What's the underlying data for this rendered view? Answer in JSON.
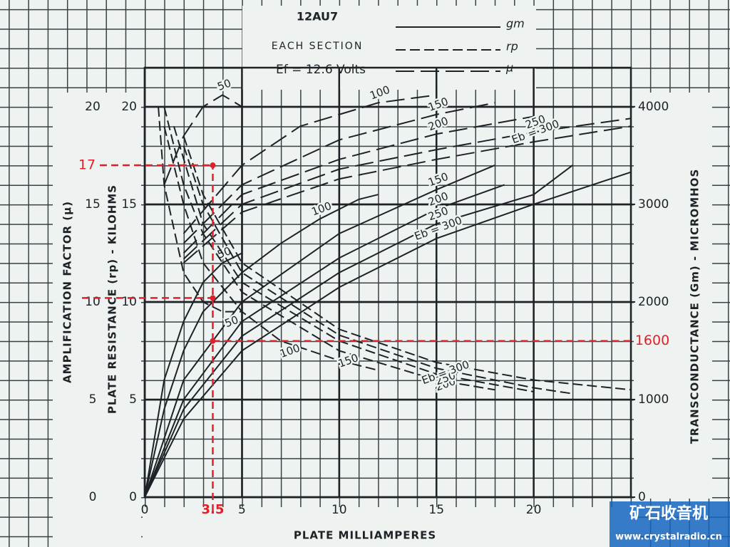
{
  "chart_data": {
    "type": "line",
    "title": "12AU7",
    "subtitle": "EACH SECTION",
    "note": "Ef = 12.6 Volts",
    "x_label": "PLATE MILLIAMPERES",
    "y_label_outer": "AMPLIFICATION FACTOR (μ)",
    "y_label": "PLATE RESISTANCE (rp) - KILOHMS",
    "y2_label": "TRANSCONDUCTANCE (Gm) - MICROMHOS",
    "xlim": [
      0,
      25
    ],
    "xticks": [
      0,
      5,
      10,
      15,
      20
    ],
    "ylim": [
      0,
      22
    ],
    "yticks": [
      0,
      5,
      10,
      15,
      20
    ],
    "y2lim": [
      0,
      4400
    ],
    "y2ticks": [
      0,
      1000,
      2000,
      3000,
      4000
    ],
    "grid": true,
    "legend": [
      {
        "name": "gm",
        "dash": "solid"
      },
      {
        "name": "rp",
        "dash": "dashed"
      },
      {
        "name": "μ",
        "dash": "long-dashed"
      }
    ],
    "series": [
      {
        "name": "50",
        "dash": "solid",
        "axis": "y2",
        "x": [
          0,
          1,
          2,
          3,
          4,
          5
        ],
        "values": [
          0,
          1200,
          1800,
          2200,
          2400,
          2500
        ]
      },
      {
        "name": "100",
        "dash": "solid",
        "axis": "y2",
        "x": [
          0,
          1,
          2,
          3,
          5,
          7,
          9,
          11,
          12
        ],
        "values": [
          0,
          900,
          1500,
          1900,
          2300,
          2600,
          2850,
          3050,
          3100
        ]
      },
      {
        "name": "150",
        "dash": "solid",
        "axis": "y2",
        "x": [
          0,
          2,
          5,
          10,
          15,
          18
        ],
        "values": [
          0,
          1200,
          2000,
          2700,
          3150,
          3400
        ]
      },
      {
        "name": "200",
        "dash": "solid",
        "axis": "y2",
        "x": [
          0,
          2,
          5,
          10,
          15,
          18.5
        ],
        "values": [
          0,
          1000,
          1800,
          2450,
          2950,
          3200
        ]
      },
      {
        "name": "250",
        "dash": "solid",
        "axis": "y2",
        "x": [
          0,
          2,
          5,
          10,
          15,
          20,
          22
        ],
        "values": [
          0,
          900,
          1650,
          2300,
          2800,
          3100,
          3400
        ]
      },
      {
        "name": "Eb = 300",
        "dash": "solid",
        "axis": "y2",
        "x": [
          0,
          2,
          5,
          10,
          15,
          20,
          25
        ],
        "values": [
          0,
          800,
          1500,
          2150,
          2650,
          3000,
          3330
        ]
      },
      {
        "name": "50",
        "dash": "long-dashed",
        "x": [
          1,
          2,
          3,
          4,
          5
        ],
        "values": [
          16,
          18.5,
          20,
          20.6,
          20
        ]
      },
      {
        "name": "100",
        "dash": "long-dashed",
        "x": [
          2,
          5,
          8,
          12,
          15
        ],
        "values": [
          13.5,
          17,
          19,
          20.2,
          20.6
        ]
      },
      {
        "name": "150",
        "dash": "long-dashed",
        "x": [
          2,
          5,
          10,
          15,
          18
        ],
        "values": [
          13,
          16,
          18.3,
          19.6,
          20.2
        ]
      },
      {
        "name": "200",
        "dash": "long-dashed",
        "x": [
          2,
          5,
          10,
          15,
          20
        ],
        "values": [
          12.5,
          15.5,
          17.3,
          18.6,
          19.5
        ]
      },
      {
        "name": "250",
        "dash": "long-dashed",
        "x": [
          2,
          5,
          10,
          15,
          20,
          25
        ],
        "values": [
          12.2,
          15,
          16.8,
          17.8,
          18.7,
          19.4
        ]
      },
      {
        "name": "Eb = 300",
        "dash": "long-dashed",
        "x": [
          2,
          5,
          10,
          15,
          20,
          25
        ],
        "values": [
          12,
          14.6,
          16.3,
          17.3,
          18.2,
          19
        ]
      },
      {
        "name": "50",
        "dash": "dashed",
        "x": [
          0.7,
          1,
          2,
          3,
          4,
          5
        ],
        "values": [
          20,
          16,
          11.5,
          10,
          9.5,
          9.5
        ]
      },
      {
        "name": "100",
        "dash": "dashed",
        "x": [
          1,
          2,
          3,
          5,
          7,
          10,
          12
        ],
        "values": [
          19,
          15,
          12,
          9.5,
          8,
          7,
          6.5
        ]
      },
      {
        "name": "150",
        "dash": "dashed",
        "x": [
          1,
          2,
          3,
          5,
          10,
          15,
          18
        ],
        "values": [
          20,
          16,
          13.5,
          10.5,
          7.5,
          6,
          5.5
        ]
      },
      {
        "name": "200",
        "dash": "dashed",
        "x": [
          1.5,
          3,
          5,
          10,
          15,
          20
        ],
        "values": [
          19,
          14,
          11,
          8,
          6.3,
          5.4
        ]
      },
      {
        "name": "250",
        "dash": "dashed",
        "x": [
          2,
          3,
          5,
          10,
          15,
          20,
          22
        ],
        "values": [
          18,
          15,
          11.5,
          8.3,
          6.6,
          5.6,
          5.3
        ]
      },
      {
        "name": "Eb = 300",
        "dash": "dashed",
        "x": [
          2,
          3,
          5,
          10,
          15,
          20,
          25
        ],
        "values": [
          18.5,
          15.5,
          12,
          8.6,
          6.9,
          6,
          5.5
        ]
      }
    ],
    "annotations": {
      "color": "#e0202a",
      "x": 3.5,
      "y": 17,
      "y_points": [
        10.2
      ],
      "y2": 1600
    }
  },
  "watermark": {
    "title": "矿石收音机",
    "url": "www.crystalradio.cn"
  }
}
